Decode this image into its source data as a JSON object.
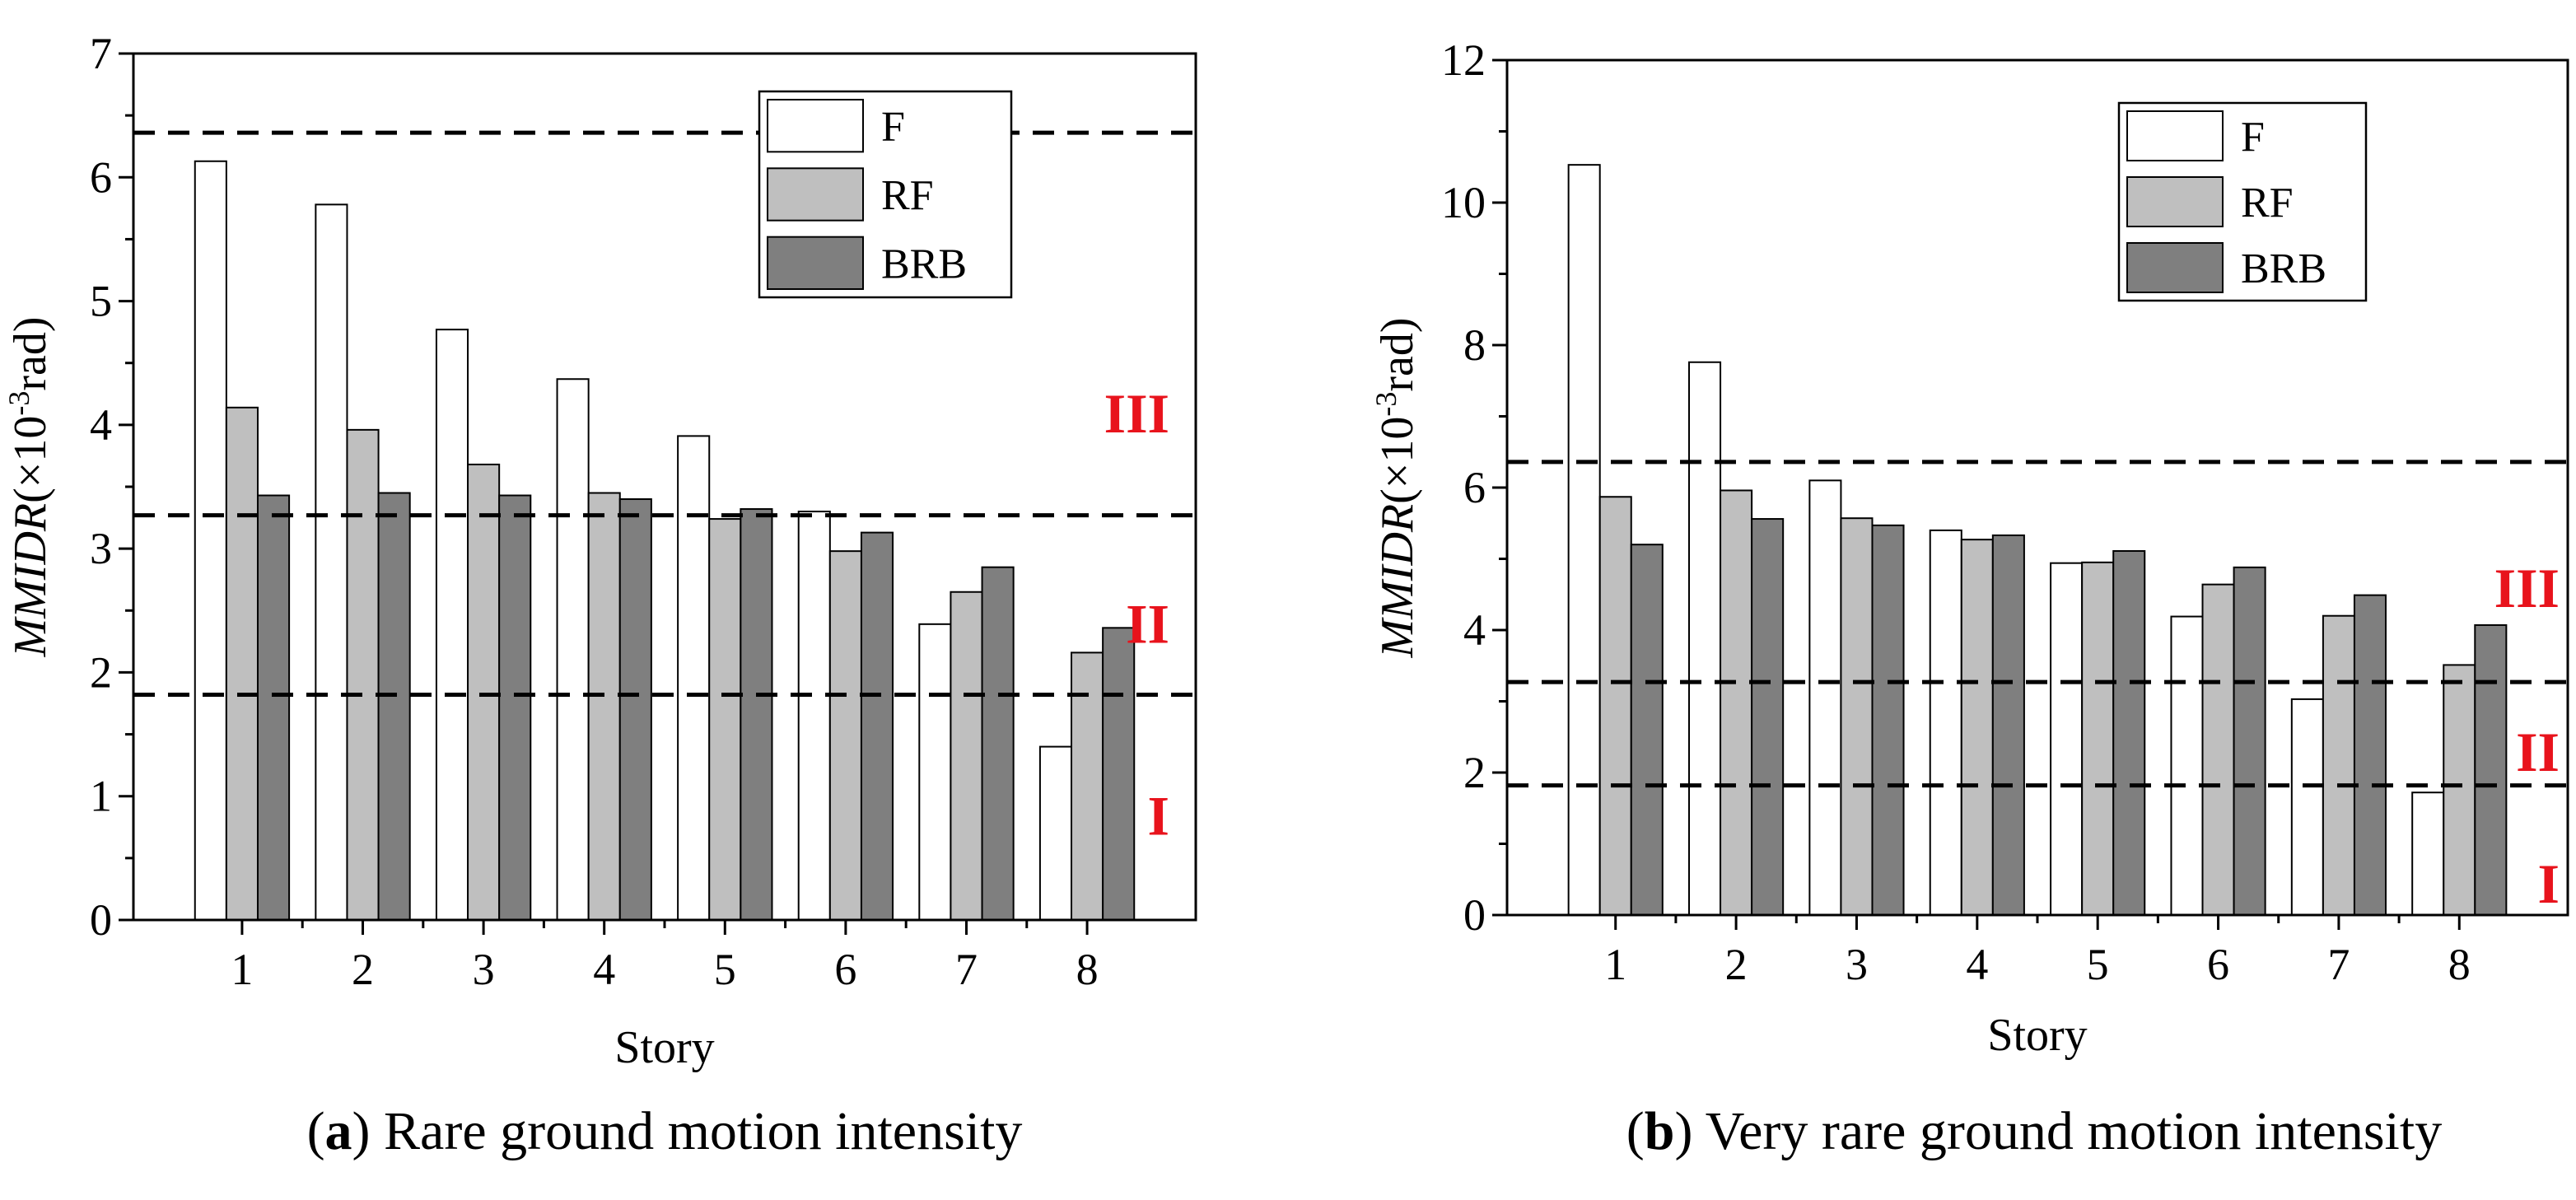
{
  "chart_data": [
    {
      "type": "bar",
      "caption_letter": "a",
      "caption_text": "Rare ground motion intensity",
      "xlabel": "Story",
      "ylabel_prefix": "MMIDR",
      "ylabel_unit_pre": "(×10",
      "ylabel_exp": "-3",
      "ylabel_unit_post": "rad)",
      "categories": [
        "1",
        "2",
        "3",
        "4",
        "5",
        "6",
        "7",
        "8"
      ],
      "yticks": [
        "0",
        "1",
        "2",
        "3",
        "4",
        "5",
        "6",
        "7"
      ],
      "ylim": [
        0,
        7
      ],
      "series": [
        {
          "name": "F",
          "color": "#ffffff",
          "values": [
            6.13,
            5.78,
            4.77,
            4.37,
            3.91,
            3.3,
            2.39,
            1.4
          ]
        },
        {
          "name": "RF",
          "color": "#bfbfbf",
          "values": [
            4.14,
            3.96,
            3.68,
            3.45,
            3.24,
            2.98,
            2.65,
            2.16
          ]
        },
        {
          "name": "BRB",
          "color": "#7f7f7f",
          "values": [
            3.43,
            3.45,
            3.43,
            3.4,
            3.32,
            3.13,
            2.85,
            2.36
          ]
        }
      ],
      "threshold_lines": [
        6.36,
        3.27,
        1.82
      ],
      "zones": [
        {
          "label": "III",
          "y": 4.1
        },
        {
          "label": "II",
          "y": 2.4
        },
        {
          "label": "I",
          "y": 0.85
        }
      ],
      "legend_placement": "top-right",
      "grid": false
    },
    {
      "type": "bar",
      "caption_letter": "b",
      "caption_text": "Very rare ground motion intensity",
      "xlabel": "Story",
      "ylabel_prefix": "MMIDR",
      "ylabel_unit_pre": "(×10",
      "ylabel_exp": "-3",
      "ylabel_unit_post": "rad)",
      "categories": [
        "1",
        "2",
        "3",
        "4",
        "5",
        "6",
        "7",
        "8"
      ],
      "yticks": [
        "0",
        "2",
        "4",
        "6",
        "8",
        "10",
        "12"
      ],
      "ylim": [
        0,
        12
      ],
      "series": [
        {
          "name": "F",
          "color": "#ffffff",
          "values": [
            10.53,
            7.76,
            6.1,
            5.4,
            4.94,
            4.19,
            3.03,
            1.72
          ]
        },
        {
          "name": "RF",
          "color": "#bfbfbf",
          "values": [
            5.87,
            5.96,
            5.57,
            5.27,
            4.95,
            4.64,
            4.2,
            3.51
          ]
        },
        {
          "name": "BRB",
          "color": "#7f7f7f",
          "values": [
            5.2,
            5.56,
            5.47,
            5.33,
            5.11,
            4.88,
            4.49,
            4.07
          ]
        }
      ],
      "threshold_lines": [
        6.36,
        3.27,
        1.82
      ],
      "zones": [
        {
          "label": "III",
          "y": 4.6
        },
        {
          "label": "II",
          "y": 2.3
        },
        {
          "label": "I",
          "y": 0.45
        }
      ],
      "legend_placement": "top-right",
      "grid": false
    }
  ]
}
